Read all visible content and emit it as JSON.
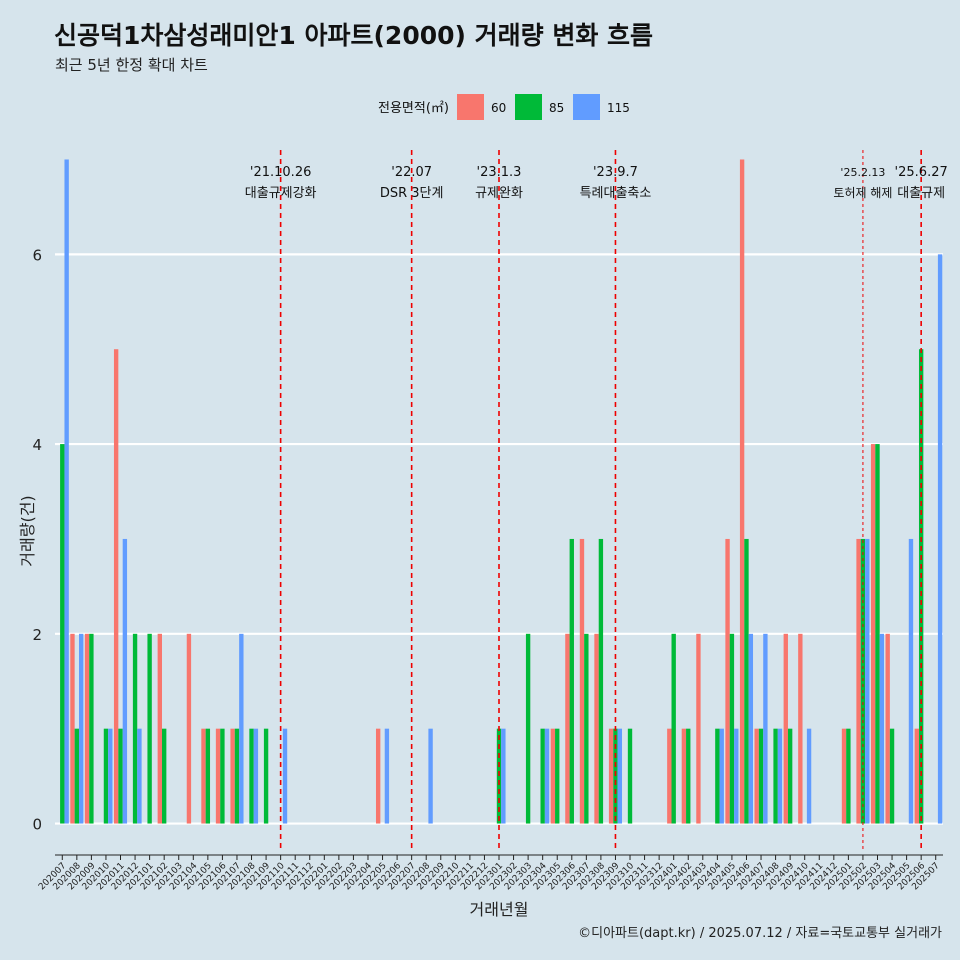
{
  "header": {
    "title": "신공덕1차삼성래미안1 아파트(2000) 거래량 변화 흐름",
    "subtitle": "최근 5년 한정 확대 차트"
  },
  "caption": "©디아파트(dapt.kr) / 2025.07.12 / 자료=국토교통부 실거래가",
  "colors": {
    "60": "#f8766d",
    "85": "#00ba38",
    "115": "#619cff",
    "background": "#d6e4ec",
    "gridline": "#ffffff",
    "event_line": "#ee0000"
  },
  "chart_data": {
    "type": "bar",
    "xlabel": "거래년월",
    "ylabel": "거래량(건)",
    "ylim": [
      -0.3,
      7.1
    ],
    "yticks": [
      0,
      2,
      4,
      6
    ],
    "grid": true,
    "legend": {
      "title": "전용면적(㎡)",
      "position": "top",
      "entries": [
        "60",
        "85",
        "115"
      ]
    },
    "categories": [
      "202007",
      "202008",
      "202009",
      "202010",
      "202011",
      "202012",
      "202101",
      "202102",
      "202103",
      "202104",
      "202105",
      "202106",
      "202107",
      "202108",
      "202109",
      "202110",
      "202111",
      "202112",
      "202201",
      "202202",
      "202203",
      "202204",
      "202205",
      "202206",
      "202207",
      "202208",
      "202209",
      "202210",
      "202211",
      "202212",
      "202301",
      "202302",
      "202303",
      "202304",
      "202305",
      "202306",
      "202307",
      "202308",
      "202309",
      "202310",
      "202311",
      "202312",
      "202401",
      "202402",
      "202403",
      "202404",
      "202405",
      "202406",
      "202407",
      "202408",
      "202409",
      "202410",
      "202411",
      "202412",
      "202501",
      "202502",
      "202503",
      "202504",
      "202505",
      "202506",
      "202507"
    ],
    "series": [
      {
        "name": "60",
        "values": [
          0,
          2,
          2,
          0,
          5,
          0,
          0,
          2,
          0,
          2,
          1,
          1,
          1,
          0,
          0,
          0,
          0,
          0,
          0,
          0,
          0,
          0,
          1,
          0,
          0,
          0,
          0,
          0,
          0,
          0,
          0,
          0,
          0,
          0,
          1,
          2,
          3,
          2,
          1,
          0,
          0,
          0,
          1,
          1,
          2,
          0,
          3,
          7,
          1,
          0,
          2,
          2,
          0,
          0,
          1,
          3,
          4,
          2,
          0,
          1,
          0
        ]
      },
      {
        "name": "85",
        "values": [
          4,
          1,
          2,
          1,
          1,
          2,
          2,
          1,
          0,
          0,
          1,
          1,
          1,
          1,
          1,
          0,
          0,
          0,
          0,
          0,
          0,
          0,
          0,
          0,
          0,
          0,
          0,
          0,
          0,
          0,
          1,
          0,
          2,
          1,
          1,
          3,
          2,
          3,
          1,
          1,
          0,
          0,
          2,
          1,
          0,
          1,
          2,
          3,
          1,
          1,
          1,
          0,
          0,
          0,
          1,
          3,
          4,
          1,
          0,
          5,
          0
        ]
      },
      {
        "name": "115",
        "values": [
          7,
          2,
          0,
          1,
          3,
          1,
          0,
          0,
          0,
          0,
          0,
          0,
          2,
          1,
          0,
          1,
          0,
          0,
          0,
          0,
          0,
          0,
          1,
          0,
          0,
          1,
          0,
          0,
          0,
          0,
          1,
          0,
          0,
          1,
          0,
          0,
          0,
          0,
          1,
          0,
          0,
          0,
          0,
          0,
          0,
          1,
          1,
          2,
          2,
          1,
          0,
          1,
          0,
          0,
          0,
          3,
          2,
          0,
          3,
          0,
          6
        ]
      }
    ],
    "events": [
      {
        "category": "202110",
        "date": "'21.10.26",
        "label": "대출규제강화",
        "style": "dashed"
      },
      {
        "category": "202207",
        "date": "'22.07",
        "label": "DSR 3단계",
        "style": "dashed"
      },
      {
        "category": "202301",
        "date": "'23.1.3",
        "label": "규제완화",
        "style": "dashed"
      },
      {
        "category": "202309",
        "date": "'23.9.7",
        "label": "특례대출축소",
        "style": "dashed"
      },
      {
        "category": "202502",
        "date": "'25.2.13",
        "label": "토허제 해제",
        "style": "dotted"
      },
      {
        "category": "202506",
        "date": "'25.6.27",
        "label": "대출규제",
        "style": "dashed"
      }
    ]
  }
}
